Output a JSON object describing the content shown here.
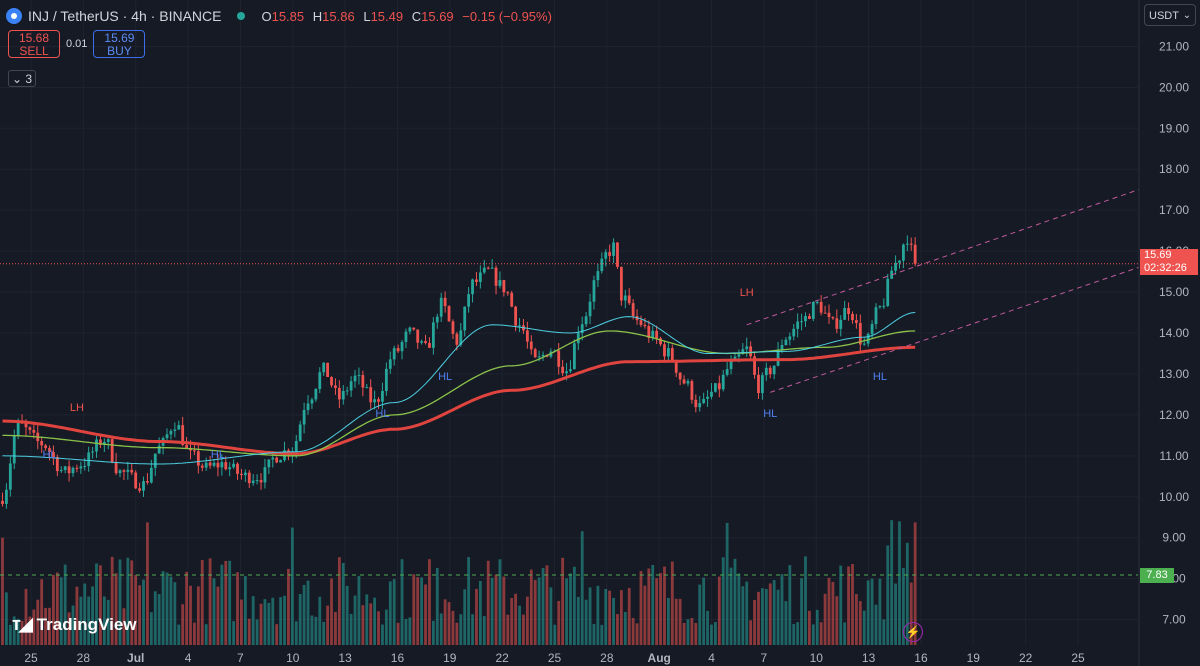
{
  "header": {
    "symbol": "INJ / TetherUS · 4h · BINANCE",
    "ohlc": {
      "open_label": "O",
      "open": "15.85",
      "high_label": "H",
      "high": "15.86",
      "low_label": "L",
      "low": "15.49",
      "close_label": "C",
      "close": "15.69",
      "change": "−0.15 (−0.95%)"
    }
  },
  "trade": {
    "sell_price": "15.68",
    "sell_label": "SELL",
    "spread": "0.01",
    "buy_price": "15.69",
    "buy_label": "BUY"
  },
  "indicators_count": "3",
  "currency": "USDT",
  "price_tag": {
    "price": "15.69",
    "countdown": "02:32:26"
  },
  "volume_tag": "7.83",
  "logo_text": "TradingView",
  "colors": {
    "background": "#161a25",
    "up": "#26a69a",
    "down": "#ef5350",
    "ma_slow": "#e0443e",
    "ma_mid": "#8bc34a",
    "ma_fast": "#4dd0e1",
    "label_lh": "#ef5350",
    "label_hl": "#4f7ff0",
    "channel": "#c05a9a"
  },
  "chart_data": {
    "type": "candlestick",
    "y_axis": {
      "ticks": [
        "21.00",
        "20.00",
        "19.00",
        "18.00",
        "17.00",
        "16.00",
        "15.00",
        "14.00",
        "13.00",
        "12.00",
        "11.00",
        "10.00",
        "9.00",
        "8.00",
        "7.00"
      ],
      "range": [
        6.6,
        21.4
      ]
    },
    "x_axis": {
      "ticks": [
        "25",
        "28",
        "Jul",
        "4",
        "7",
        "10",
        "13",
        "16",
        "19",
        "22",
        "25",
        "28",
        "Aug",
        "4",
        "7",
        "10",
        "13",
        "16",
        "19",
        "22",
        "25"
      ]
    },
    "current_price": 15.69,
    "close_keypoints": [
      [
        0,
        10.0
      ],
      [
        4,
        11.75
      ],
      [
        10,
        11.3
      ],
      [
        16,
        10.6
      ],
      [
        20,
        10.8
      ],
      [
        26,
        11.4
      ],
      [
        30,
        10.6
      ],
      [
        36,
        10.3
      ],
      [
        40,
        11.2
      ],
      [
        44,
        11.8
      ],
      [
        48,
        11.0
      ],
      [
        52,
        10.7
      ],
      [
        56,
        10.8
      ],
      [
        62,
        10.5
      ],
      [
        66,
        10.5
      ],
      [
        70,
        11.0
      ],
      [
        74,
        11.2
      ],
      [
        78,
        12.4
      ],
      [
        82,
        13.1
      ],
      [
        86,
        12.4
      ],
      [
        90,
        12.9
      ],
      [
        95,
        12.3
      ],
      [
        100,
        13.5
      ],
      [
        104,
        14.0
      ],
      [
        108,
        13.6
      ],
      [
        112,
        14.7
      ],
      [
        116,
        13.8
      ],
      [
        120,
        15.2
      ],
      [
        124,
        15.5
      ],
      [
        128,
        15.1
      ],
      [
        132,
        14.2
      ],
      [
        136,
        13.3
      ],
      [
        140,
        13.6
      ],
      [
        144,
        13.1
      ],
      [
        148,
        14.3
      ],
      [
        152,
        15.4
      ],
      [
        154,
        15.9
      ],
      [
        156,
        16.1
      ],
      [
        158,
        14.9
      ],
      [
        162,
        14.3
      ],
      [
        166,
        13.9
      ],
      [
        170,
        13.5
      ],
      [
        174,
        12.8
      ],
      [
        178,
        12.2
      ],
      [
        182,
        12.6
      ],
      [
        186,
        13.2
      ],
      [
        190,
        13.6
      ],
      [
        193,
        12.7
      ],
      [
        196,
        13.1
      ],
      [
        200,
        13.9
      ],
      [
        204,
        14.3
      ],
      [
        208,
        14.7
      ],
      [
        212,
        14.2
      ],
      [
        216,
        14.6
      ],
      [
        220,
        13.7
      ],
      [
        224,
        14.6
      ],
      [
        228,
        15.7
      ],
      [
        231,
        16.35
      ],
      [
        233,
        15.69
      ]
    ],
    "ma_lines": [
      {
        "role": "slow",
        "keypoints": [
          [
            0,
            11.85
          ],
          [
            40,
            11.35
          ],
          [
            75,
            11.05
          ],
          [
            100,
            11.65
          ],
          [
            130,
            12.6
          ],
          [
            160,
            13.3
          ],
          [
            200,
            13.35
          ],
          [
            233,
            13.65
          ]
        ]
      },
      {
        "role": "mid",
        "keypoints": [
          [
            0,
            11.5
          ],
          [
            40,
            11.2
          ],
          [
            75,
            11.0
          ],
          [
            100,
            12.0
          ],
          [
            130,
            13.2
          ],
          [
            155,
            14.05
          ],
          [
            185,
            13.5
          ],
          [
            210,
            13.65
          ],
          [
            233,
            14.05
          ]
        ]
      },
      {
        "role": "fast",
        "keypoints": [
          [
            0,
            11.0
          ],
          [
            40,
            10.8
          ],
          [
            75,
            11.1
          ],
          [
            100,
            12.3
          ],
          [
            125,
            14.2
          ],
          [
            145,
            14.0
          ],
          [
            160,
            14.4
          ],
          [
            180,
            13.5
          ],
          [
            200,
            13.55
          ],
          [
            220,
            13.9
          ],
          [
            233,
            14.5
          ]
        ]
      }
    ],
    "annotations": [
      {
        "text": "LH",
        "kind": "LH",
        "at": [
          19,
          12.1
        ]
      },
      {
        "text": "HL",
        "kind": "HL",
        "at": [
          12,
          10.95
        ]
      },
      {
        "text": "HL",
        "kind": "HL",
        "at": [
          55,
          10.95
        ]
      },
      {
        "text": "HL",
        "kind": "HL",
        "at": [
          97,
          11.95
        ]
      },
      {
        "text": "HL",
        "kind": "HL",
        "at": [
          113,
          12.85
        ]
      },
      {
        "text": "LH",
        "kind": "LH",
        "at": [
          190,
          14.9
        ]
      },
      {
        "text": "HL",
        "kind": "HL",
        "at": [
          196,
          11.95
        ]
      },
      {
        "text": "HL",
        "kind": "HL",
        "at": [
          224,
          12.85
        ]
      }
    ],
    "channel": {
      "upper": [
        [
          190,
          14.2
        ],
        [
          290,
          17.5
        ]
      ],
      "lower": [
        [
          196,
          12.55
        ],
        [
          290,
          15.6
        ]
      ]
    },
    "volume_reference": 7.83
  }
}
